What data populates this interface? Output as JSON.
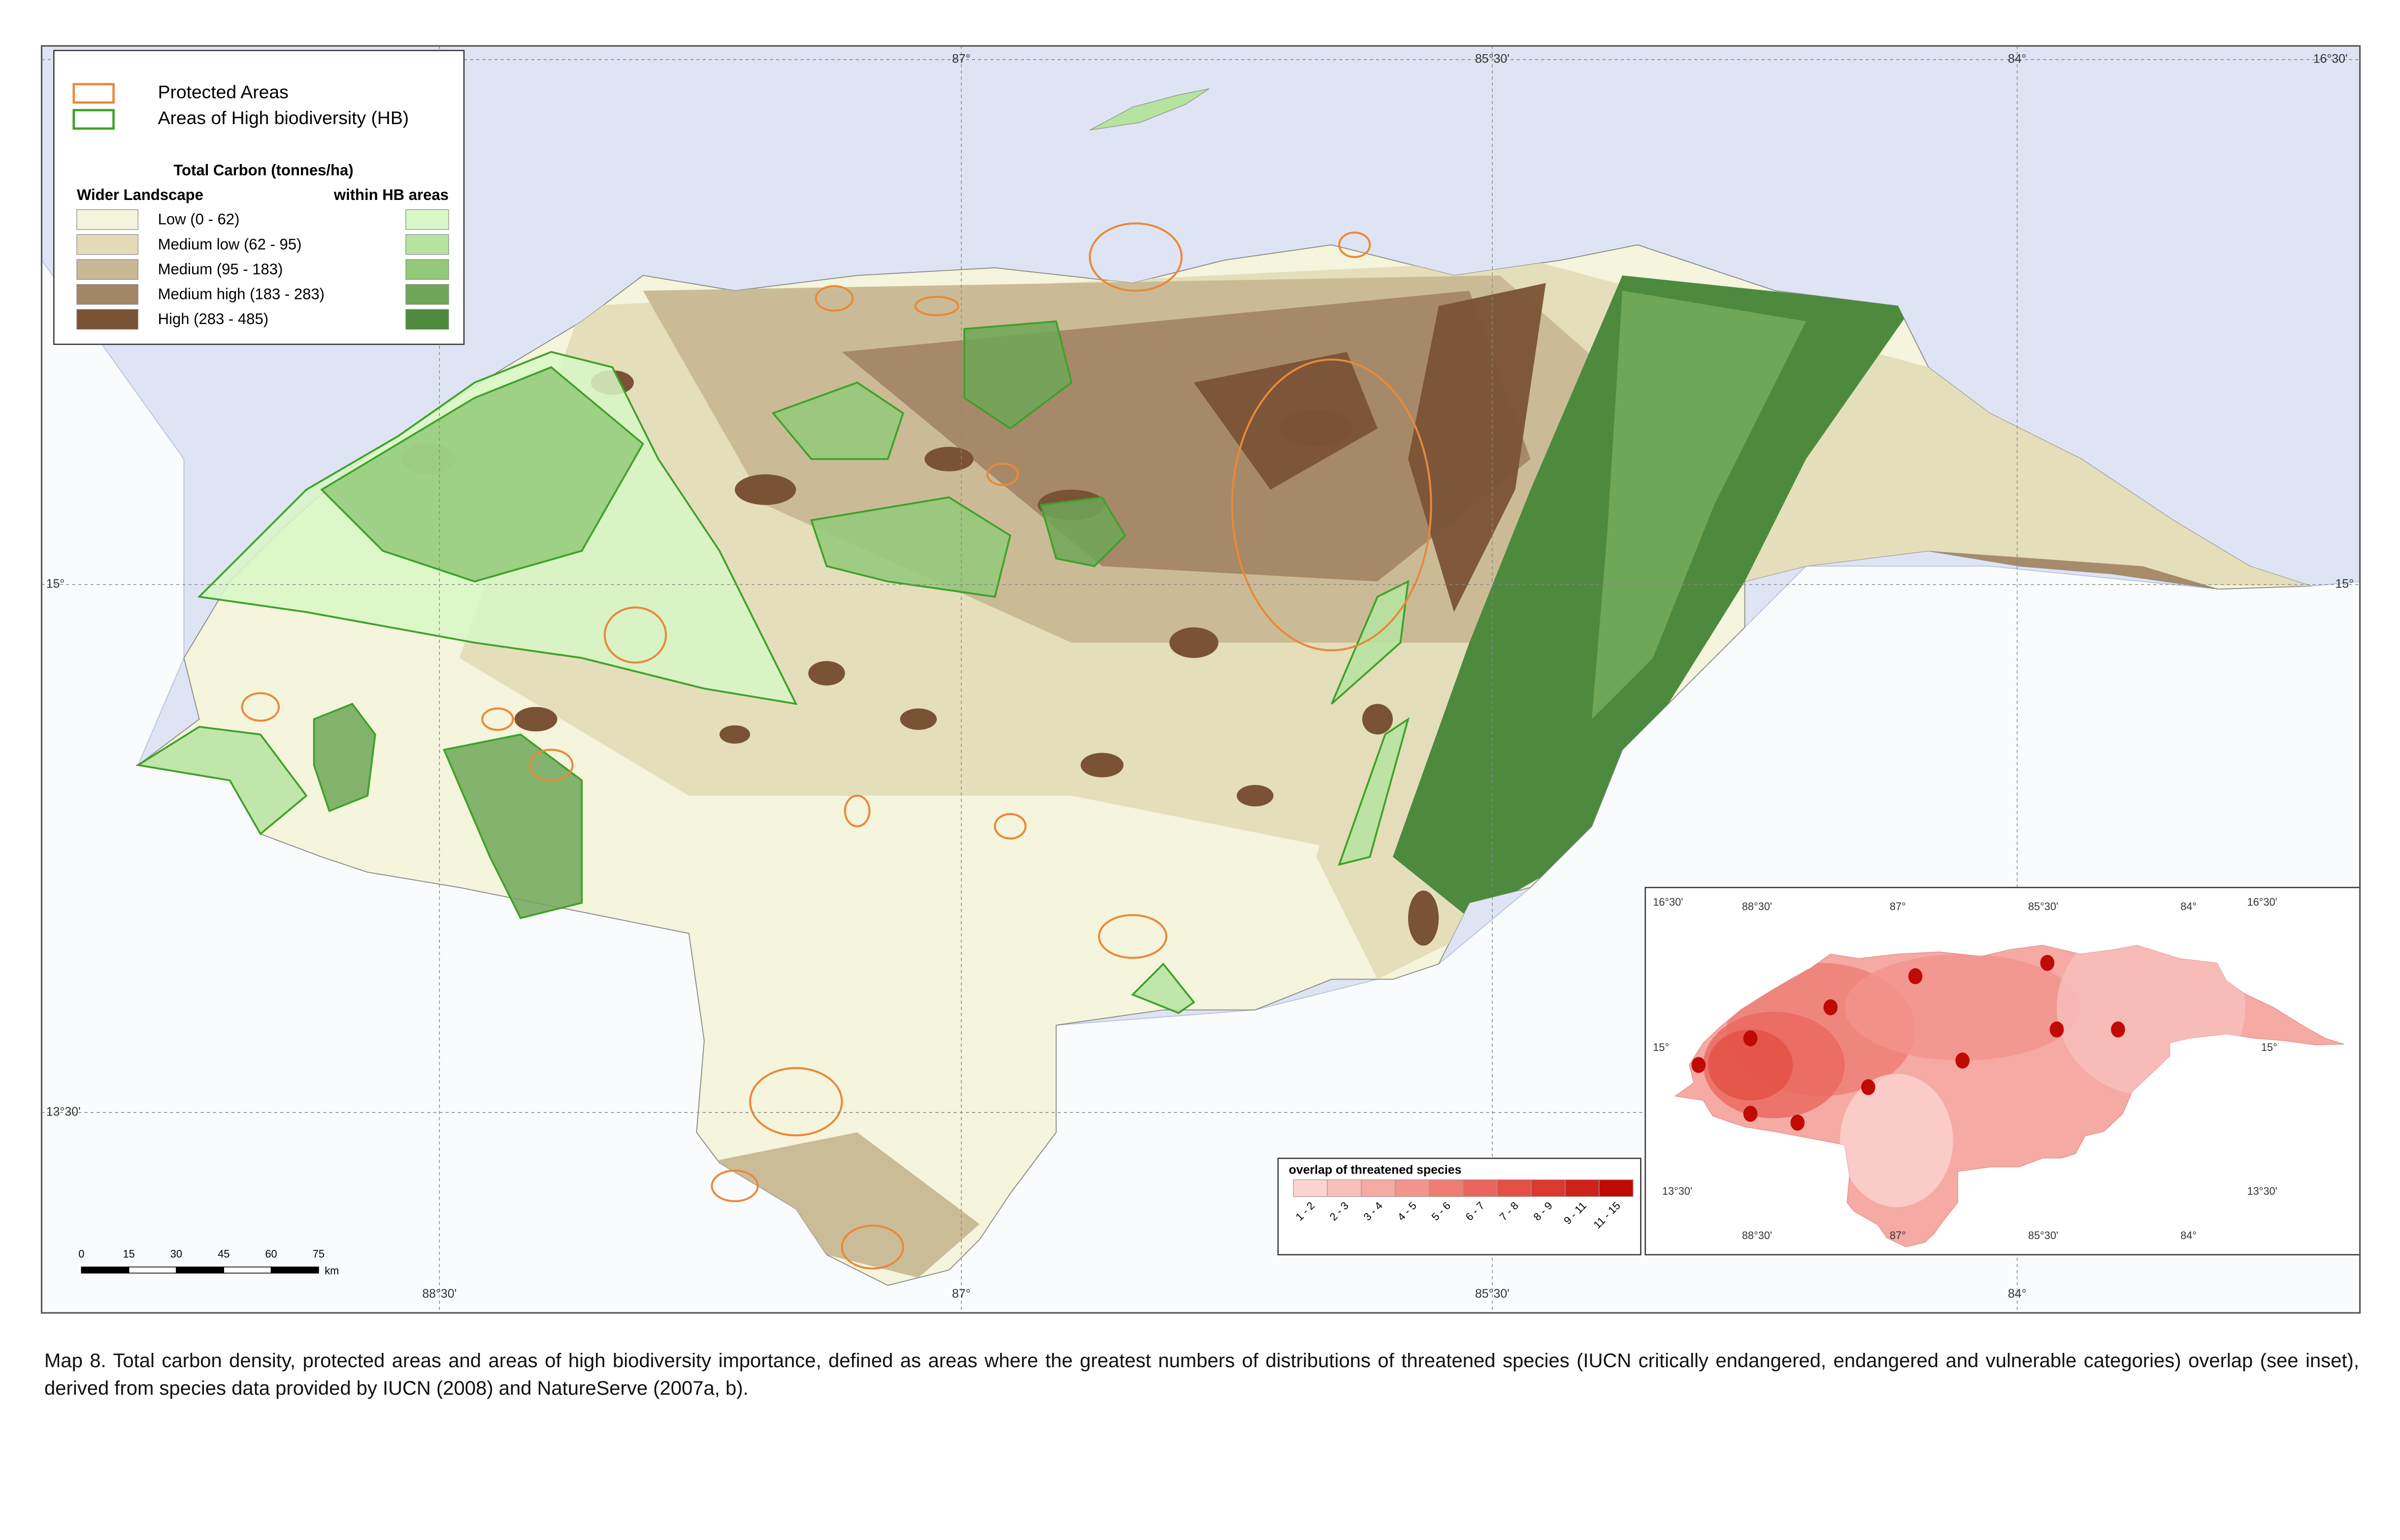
{
  "legend": {
    "items": [
      {
        "label": "Protected Areas",
        "color": "#e8893a"
      },
      {
        "label": "Areas of High biodiversity (HB)",
        "color": "#3fa12a"
      }
    ],
    "carbon_title": "Total Carbon (tonnes/ha)",
    "col_left": "Wider Landscape",
    "col_right": "within HB areas",
    "classes": [
      {
        "label": "Low (0 - 62)",
        "color": "#f5f4dc",
        "hb_color": "#d8f7c6"
      },
      {
        "label": "Medium low (62 - 95)",
        "color": "#e4dcb8",
        "hb_color": "#b6e4a0"
      },
      {
        "label": "Medium  (95 - 183)",
        "color": "#c8b894",
        "hb_color": "#93c97a"
      },
      {
        "label": "Medium high  (183 - 283)",
        "color": "#a38665",
        "hb_color": "#6fa758"
      },
      {
        "label": "High  (283 - 485)",
        "color": "#7a5236",
        "hb_color": "#4d8a3e"
      }
    ]
  },
  "graticule": {
    "lon_labels": [
      "88°30'",
      "87°",
      "85°30'",
      "84°"
    ],
    "lat_labels": [
      "16°30'",
      "15°",
      "13°30'"
    ]
  },
  "scale_bar": {
    "labels": [
      "0",
      "15",
      "30",
      "45",
      "60",
      "75"
    ],
    "unit": "km"
  },
  "inset": {
    "title": "overlap of threatened species",
    "classes": [
      "1 - 2",
      "2 - 3",
      "3 - 4",
      "4 - 5",
      "5 - 6",
      "6 - 7",
      "7 - 8",
      "8 - 9",
      "9 - 11",
      "11 - 15"
    ],
    "colors": [
      "#fbd3d0",
      "#f8c0bb",
      "#f5aaa4",
      "#f2948c",
      "#ee7d74",
      "#ea665c",
      "#e44f44",
      "#dc382e",
      "#d0221a",
      "#c00a06"
    ]
  },
  "caption": "Map 8. Total carbon density, protected areas and areas of high biodiversity importance, defined as areas where the greatest numbers of distributions of threatened species (IUCN critically endangered, endangered and vulnerable categories) overlap (see inset), derived from species data provided by IUCN (2008) and NatureServe (2007a, b)."
}
